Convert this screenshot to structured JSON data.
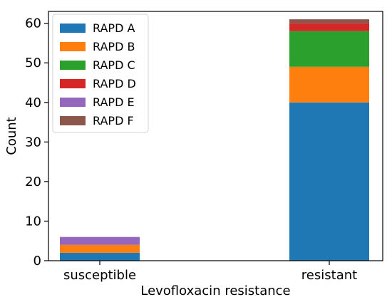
{
  "chart_data": {
    "type": "bar",
    "stacked": true,
    "categories": [
      "susceptible",
      "resistant"
    ],
    "series": [
      {
        "name": "RAPD A",
        "color": "#1f77b4",
        "values": [
          2,
          40
        ]
      },
      {
        "name": "RAPD B",
        "color": "#ff7f0e",
        "values": [
          2,
          9
        ]
      },
      {
        "name": "RAPD C",
        "color": "#2ca02c",
        "values": [
          0,
          9
        ]
      },
      {
        "name": "RAPD D",
        "color": "#d62728",
        "values": [
          0,
          2
        ]
      },
      {
        "name": "RAPD E",
        "color": "#9467bd",
        "values": [
          2,
          0
        ]
      },
      {
        "name": "RAPD F",
        "color": "#8c564b",
        "values": [
          0,
          1
        ]
      }
    ],
    "xlabel": "Levofloxacin resistance",
    "ylabel": "Count",
    "ylim": [
      0,
      63
    ],
    "yticks": [
      0,
      10,
      20,
      30,
      40,
      50,
      60
    ],
    "legend_position": "top-left",
    "grid": false
  }
}
